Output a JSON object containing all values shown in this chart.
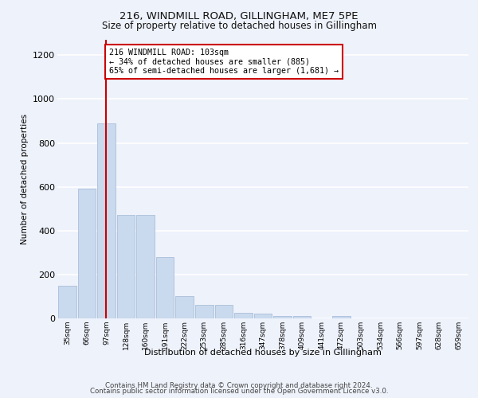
{
  "title_line1": "216, WINDMILL ROAD, GILLINGHAM, ME7 5PE",
  "title_line2": "Size of property relative to detached houses in Gillingham",
  "xlabel": "Distribution of detached houses by size in Gillingham",
  "ylabel": "Number of detached properties",
  "footer_line1": "Contains HM Land Registry data © Crown copyright and database right 2024.",
  "footer_line2": "Contains public sector information licensed under the Open Government Licence v3.0.",
  "annotation_line1": "216 WINDMILL ROAD: 103sqm",
  "annotation_line2": "← 34% of detached houses are smaller (885)",
  "annotation_line3": "65% of semi-detached houses are larger (1,681) →",
  "bar_color": "#c9d9ee",
  "bar_edge_color": "#aabfd9",
  "vline_color": "#cc0000",
  "vline_x_bin": 2,
  "categories": [
    "35sqm",
    "66sqm",
    "97sqm",
    "128sqm",
    "160sqm",
    "191sqm",
    "222sqm",
    "253sqm",
    "285sqm",
    "316sqm",
    "347sqm",
    "378sqm",
    "409sqm",
    "441sqm",
    "472sqm",
    "503sqm",
    "534sqm",
    "566sqm",
    "597sqm",
    "628sqm",
    "659sqm"
  ],
  "bin_edges": [
    0,
    1,
    2,
    3,
    4,
    5,
    6,
    7,
    8,
    9,
    10,
    11,
    12,
    13,
    14,
    15,
    16,
    17,
    18,
    19,
    20,
    21
  ],
  "values": [
    150,
    590,
    890,
    470,
    470,
    280,
    100,
    60,
    60,
    25,
    20,
    10,
    10,
    0,
    10,
    0,
    0,
    0,
    0,
    0,
    0
  ],
  "ylim": [
    0,
    1270
  ],
  "yticks": [
    0,
    200,
    400,
    600,
    800,
    1000,
    1200
  ],
  "background_color": "#eef2fb",
  "grid_color": "#ffffff",
  "annotation_box_color": "#ffffff",
  "annotation_box_edge_color": "#cc0000"
}
